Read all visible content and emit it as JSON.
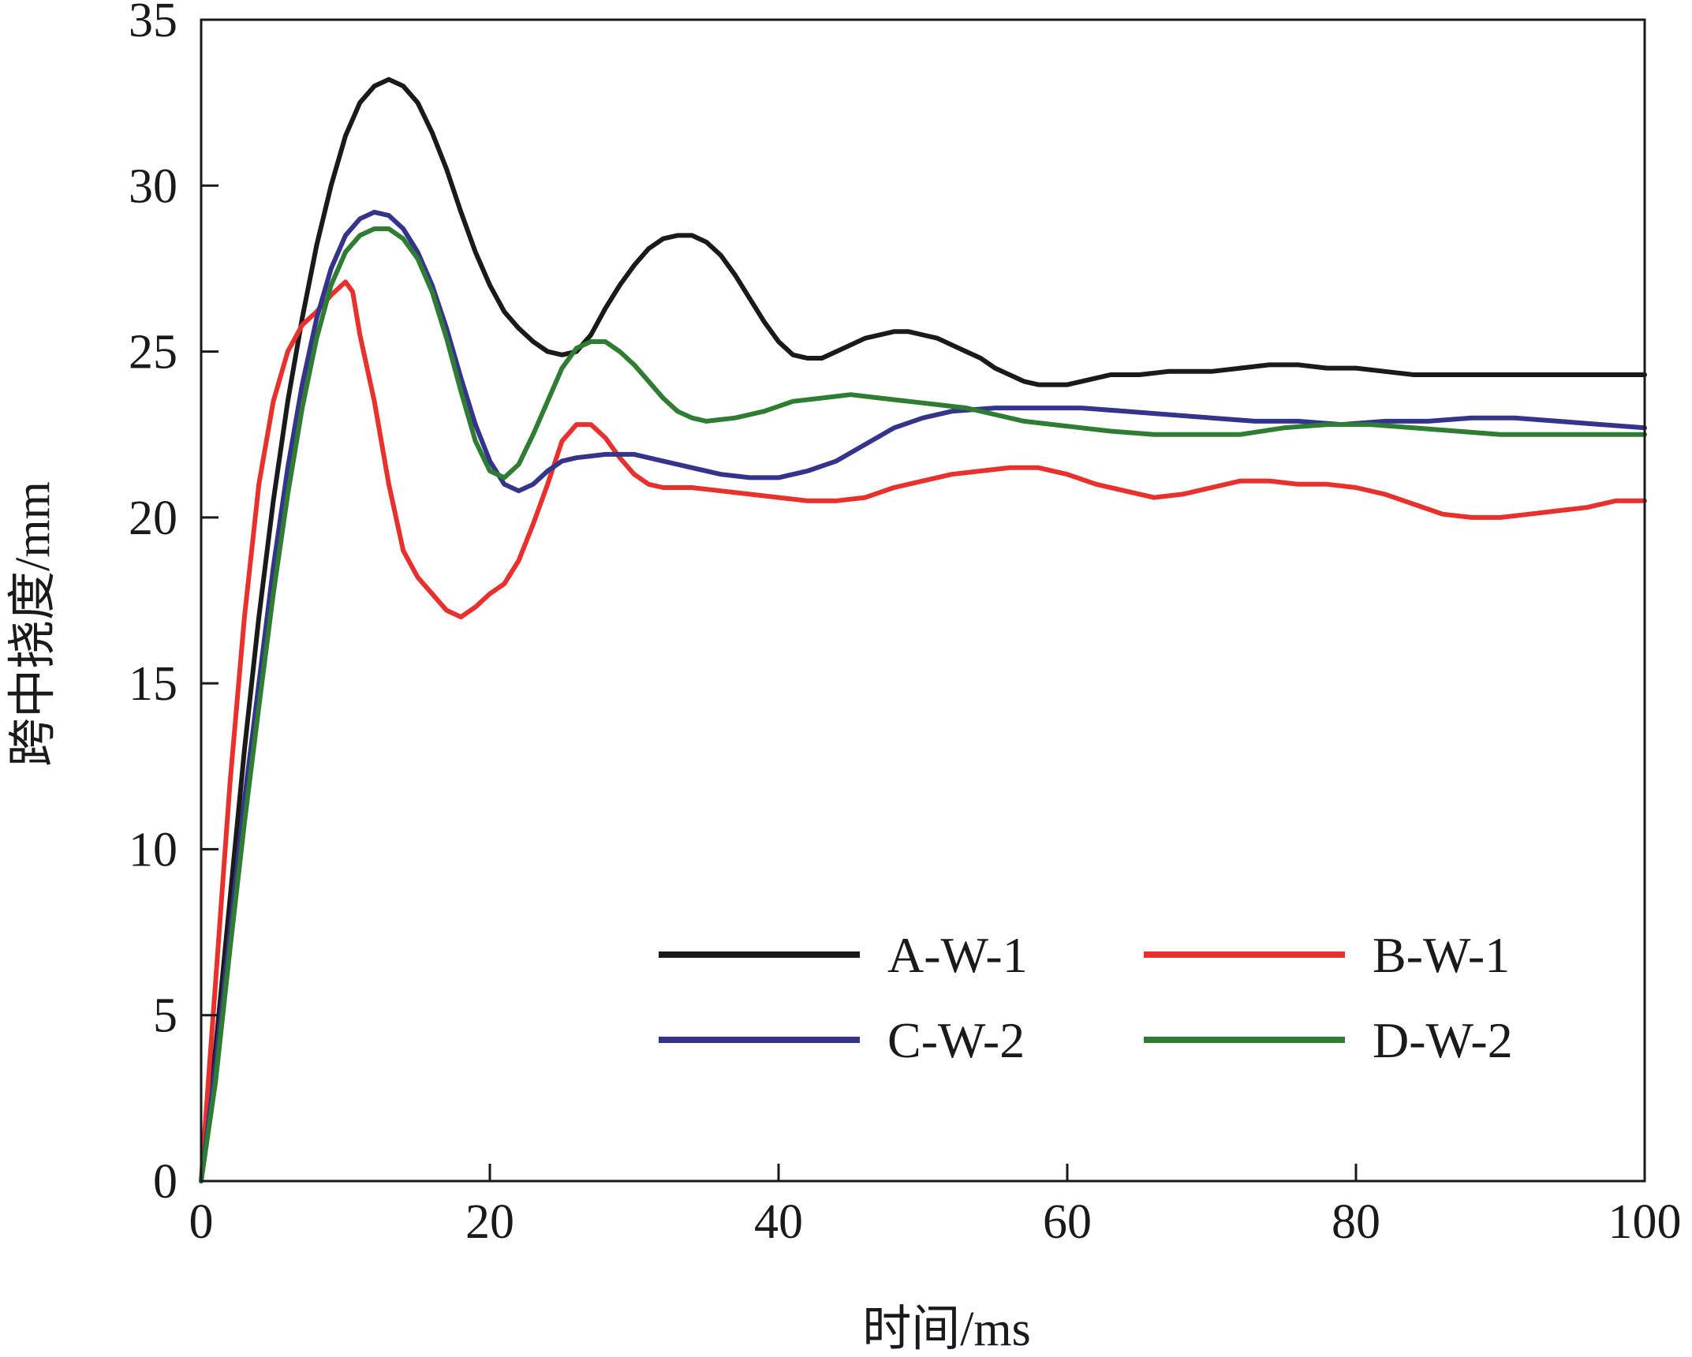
{
  "chart_data": {
    "type": "line",
    "xlabel": "时间/ms",
    "ylabel": "跨中挠度/mm",
    "xlim": [
      0,
      100
    ],
    "ylim": [
      0,
      35
    ],
    "xticks": [
      0,
      20,
      40,
      60,
      80,
      100
    ],
    "yticks": [
      0,
      5,
      10,
      15,
      20,
      25,
      30,
      35
    ],
    "grid": false,
    "legend_position": "bottom-right",
    "series": [
      {
        "name": "A-W-1",
        "color": "#1a1a1a",
        "points": [
          [
            0,
            0
          ],
          [
            1,
            4
          ],
          [
            2,
            8.5
          ],
          [
            3,
            13
          ],
          [
            4,
            17
          ],
          [
            5,
            20.5
          ],
          [
            6,
            23.5
          ],
          [
            7,
            26
          ],
          [
            8,
            28.2
          ],
          [
            9,
            30
          ],
          [
            10,
            31.5
          ],
          [
            11,
            32.5
          ],
          [
            12,
            33
          ],
          [
            13,
            33.2
          ],
          [
            14,
            33
          ],
          [
            15,
            32.5
          ],
          [
            16,
            31.6
          ],
          [
            17,
            30.5
          ],
          [
            18,
            29.2
          ],
          [
            19,
            28
          ],
          [
            20,
            27
          ],
          [
            21,
            26.2
          ],
          [
            22,
            25.7
          ],
          [
            23,
            25.3
          ],
          [
            24,
            25
          ],
          [
            25,
            24.9
          ],
          [
            26,
            25
          ],
          [
            27,
            25.5
          ],
          [
            28,
            26.3
          ],
          [
            29,
            27
          ],
          [
            30,
            27.6
          ],
          [
            31,
            28.1
          ],
          [
            32,
            28.4
          ],
          [
            33,
            28.5
          ],
          [
            34,
            28.5
          ],
          [
            35,
            28.3
          ],
          [
            36,
            27.9
          ],
          [
            37,
            27.3
          ],
          [
            38,
            26.6
          ],
          [
            39,
            25.9
          ],
          [
            40,
            25.3
          ],
          [
            41,
            24.9
          ],
          [
            42,
            24.8
          ],
          [
            43,
            24.8
          ],
          [
            44,
            25
          ],
          [
            45,
            25.2
          ],
          [
            46,
            25.4
          ],
          [
            47,
            25.5
          ],
          [
            48,
            25.6
          ],
          [
            49,
            25.6
          ],
          [
            50,
            25.5
          ],
          [
            51,
            25.4
          ],
          [
            52,
            25.2
          ],
          [
            53,
            25
          ],
          [
            54,
            24.8
          ],
          [
            55,
            24.5
          ],
          [
            56,
            24.3
          ],
          [
            57,
            24.1
          ],
          [
            58,
            24
          ],
          [
            59,
            24
          ],
          [
            60,
            24
          ],
          [
            61,
            24.1
          ],
          [
            62,
            24.2
          ],
          [
            63,
            24.3
          ],
          [
            65,
            24.3
          ],
          [
            67,
            24.4
          ],
          [
            70,
            24.4
          ],
          [
            72,
            24.5
          ],
          [
            74,
            24.6
          ],
          [
            76,
            24.6
          ],
          [
            78,
            24.5
          ],
          [
            80,
            24.5
          ],
          [
            82,
            24.4
          ],
          [
            84,
            24.3
          ],
          [
            86,
            24.3
          ],
          [
            88,
            24.3
          ],
          [
            90,
            24.3
          ],
          [
            92,
            24.3
          ],
          [
            94,
            24.3
          ],
          [
            96,
            24.3
          ],
          [
            98,
            24.3
          ],
          [
            100,
            24.3
          ]
        ]
      },
      {
        "name": "B-W-1",
        "color": "#e8312d",
        "points": [
          [
            0,
            0
          ],
          [
            0.5,
            3
          ],
          [
            1,
            6
          ],
          [
            1.5,
            9
          ],
          [
            2,
            12
          ],
          [
            3,
            17
          ],
          [
            4,
            21
          ],
          [
            5,
            23.5
          ],
          [
            6,
            25
          ],
          [
            7,
            25.8
          ],
          [
            8,
            26.2
          ],
          [
            9,
            26.7
          ],
          [
            10,
            27.1
          ],
          [
            10.5,
            26.8
          ],
          [
            11,
            25.5
          ],
          [
            12,
            23.5
          ],
          [
            13,
            21
          ],
          [
            14,
            19
          ],
          [
            15,
            18.2
          ],
          [
            16,
            17.7
          ],
          [
            17,
            17.2
          ],
          [
            18,
            17
          ],
          [
            19,
            17.3
          ],
          [
            20,
            17.7
          ],
          [
            21,
            18
          ],
          [
            22,
            18.7
          ],
          [
            23,
            19.8
          ],
          [
            24,
            21
          ],
          [
            25,
            22.3
          ],
          [
            26,
            22.8
          ],
          [
            27,
            22.8
          ],
          [
            28,
            22.4
          ],
          [
            29,
            21.8
          ],
          [
            30,
            21.3
          ],
          [
            31,
            21
          ],
          [
            32,
            20.9
          ],
          [
            34,
            20.9
          ],
          [
            36,
            20.8
          ],
          [
            38,
            20.7
          ],
          [
            40,
            20.6
          ],
          [
            42,
            20.5
          ],
          [
            44,
            20.5
          ],
          [
            46,
            20.6
          ],
          [
            48,
            20.9
          ],
          [
            50,
            21.1
          ],
          [
            52,
            21.3
          ],
          [
            54,
            21.4
          ],
          [
            56,
            21.5
          ],
          [
            58,
            21.5
          ],
          [
            60,
            21.3
          ],
          [
            62,
            21
          ],
          [
            64,
            20.8
          ],
          [
            66,
            20.6
          ],
          [
            68,
            20.7
          ],
          [
            70,
            20.9
          ],
          [
            72,
            21.1
          ],
          [
            74,
            21.1
          ],
          [
            76,
            21
          ],
          [
            78,
            21
          ],
          [
            80,
            20.9
          ],
          [
            82,
            20.7
          ],
          [
            84,
            20.4
          ],
          [
            86,
            20.1
          ],
          [
            88,
            20
          ],
          [
            90,
            20
          ],
          [
            92,
            20.1
          ],
          [
            94,
            20.2
          ],
          [
            96,
            20.3
          ],
          [
            98,
            20.5
          ],
          [
            100,
            20.5
          ]
        ]
      },
      {
        "name": "C-W-2",
        "color": "#34348c",
        "points": [
          [
            0,
            0
          ],
          [
            1,
            3.5
          ],
          [
            2,
            7.5
          ],
          [
            3,
            11.5
          ],
          [
            4,
            15
          ],
          [
            5,
            18.5
          ],
          [
            6,
            21.5
          ],
          [
            7,
            24
          ],
          [
            8,
            26
          ],
          [
            9,
            27.5
          ],
          [
            10,
            28.5
          ],
          [
            11,
            29
          ],
          [
            12,
            29.2
          ],
          [
            13,
            29.1
          ],
          [
            14,
            28.7
          ],
          [
            15,
            28
          ],
          [
            16,
            27
          ],
          [
            17,
            25.7
          ],
          [
            18,
            24.2
          ],
          [
            19,
            22.8
          ],
          [
            20,
            21.7
          ],
          [
            21,
            21
          ],
          [
            22,
            20.8
          ],
          [
            23,
            21
          ],
          [
            24,
            21.4
          ],
          [
            25,
            21.7
          ],
          [
            26,
            21.8
          ],
          [
            28,
            21.9
          ],
          [
            30,
            21.9
          ],
          [
            32,
            21.7
          ],
          [
            34,
            21.5
          ],
          [
            36,
            21.3
          ],
          [
            38,
            21.2
          ],
          [
            40,
            21.2
          ],
          [
            42,
            21.4
          ],
          [
            44,
            21.7
          ],
          [
            46,
            22.2
          ],
          [
            48,
            22.7
          ],
          [
            50,
            23
          ],
          [
            52,
            23.2
          ],
          [
            55,
            23.3
          ],
          [
            58,
            23.3
          ],
          [
            61,
            23.3
          ],
          [
            64,
            23.2
          ],
          [
            67,
            23.1
          ],
          [
            70,
            23
          ],
          [
            73,
            22.9
          ],
          [
            76,
            22.9
          ],
          [
            79,
            22.8
          ],
          [
            82,
            22.9
          ],
          [
            85,
            22.9
          ],
          [
            88,
            23
          ],
          [
            91,
            23
          ],
          [
            94,
            22.9
          ],
          [
            97,
            22.8
          ],
          [
            100,
            22.7
          ]
        ]
      },
      {
        "name": "D-W-2",
        "color": "#2e7d32",
        "points": [
          [
            0,
            0
          ],
          [
            1,
            3
          ],
          [
            2,
            7
          ],
          [
            3,
            10.8
          ],
          [
            4,
            14.3
          ],
          [
            5,
            17.7
          ],
          [
            6,
            20.7
          ],
          [
            7,
            23.3
          ],
          [
            8,
            25.4
          ],
          [
            9,
            27
          ],
          [
            10,
            28
          ],
          [
            11,
            28.5
          ],
          [
            12,
            28.7
          ],
          [
            13,
            28.7
          ],
          [
            14,
            28.4
          ],
          [
            15,
            27.8
          ],
          [
            16,
            26.8
          ],
          [
            17,
            25.4
          ],
          [
            18,
            23.8
          ],
          [
            19,
            22.3
          ],
          [
            20,
            21.4
          ],
          [
            21,
            21.2
          ],
          [
            22,
            21.6
          ],
          [
            23,
            22.5
          ],
          [
            24,
            23.5
          ],
          [
            25,
            24.5
          ],
          [
            26,
            25.1
          ],
          [
            27,
            25.3
          ],
          [
            28,
            25.3
          ],
          [
            29,
            25
          ],
          [
            30,
            24.6
          ],
          [
            31,
            24.1
          ],
          [
            32,
            23.6
          ],
          [
            33,
            23.2
          ],
          [
            34,
            23
          ],
          [
            35,
            22.9
          ],
          [
            37,
            23
          ],
          [
            39,
            23.2
          ],
          [
            41,
            23.5
          ],
          [
            43,
            23.6
          ],
          [
            45,
            23.7
          ],
          [
            47,
            23.6
          ],
          [
            49,
            23.5
          ],
          [
            51,
            23.4
          ],
          [
            53,
            23.3
          ],
          [
            55,
            23.1
          ],
          [
            57,
            22.9
          ],
          [
            59,
            22.8
          ],
          [
            61,
            22.7
          ],
          [
            63,
            22.6
          ],
          [
            66,
            22.5
          ],
          [
            69,
            22.5
          ],
          [
            72,
            22.5
          ],
          [
            75,
            22.7
          ],
          [
            78,
            22.8
          ],
          [
            81,
            22.8
          ],
          [
            84,
            22.7
          ],
          [
            87,
            22.6
          ],
          [
            90,
            22.5
          ],
          [
            93,
            22.5
          ],
          [
            96,
            22.5
          ],
          [
            100,
            22.5
          ]
        ]
      }
    ]
  }
}
